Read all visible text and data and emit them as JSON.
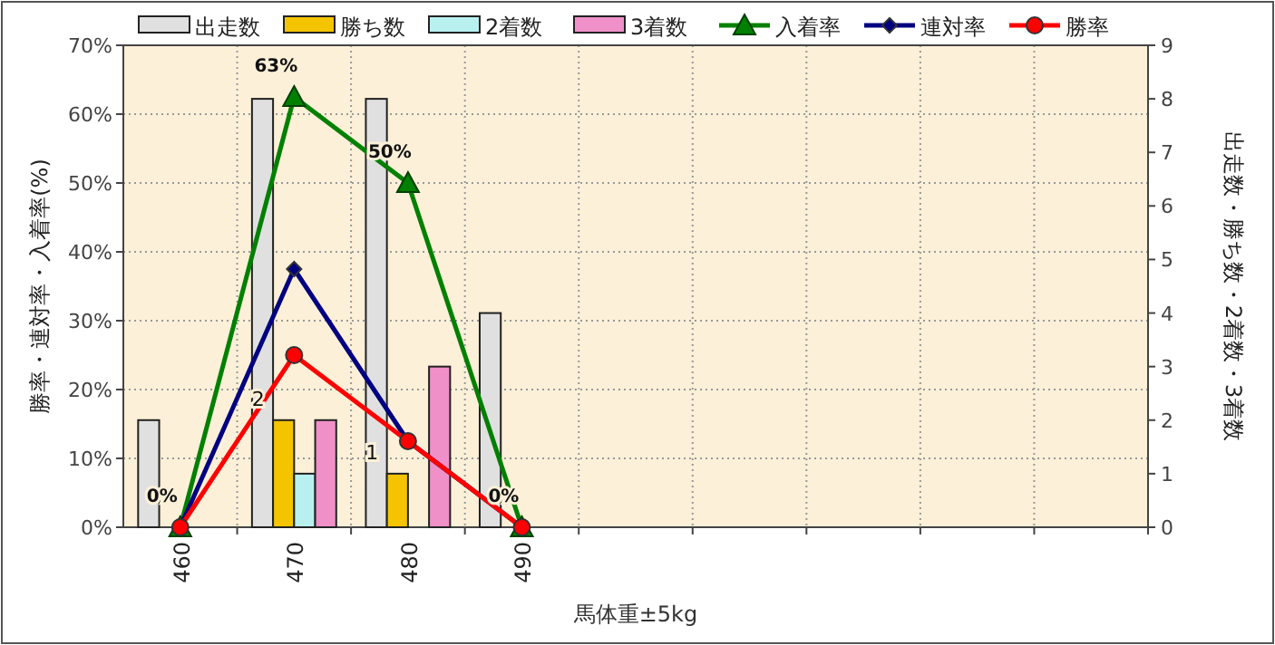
{
  "chart_data": {
    "type": "bar",
    "xlabel": "馬体重±5kg",
    "ylabel": "勝率・連対率・入着率(%)",
    "y2label": "出走数・勝ち数・2着数・3着数",
    "categories": [
      "460",
      "470",
      "480",
      "490",
      null,
      null,
      null,
      null,
      null
    ],
    "series": [
      {
        "name": "出走数",
        "axis": "y2",
        "color": "#e0e0e0",
        "values": [
          2,
          8,
          8,
          4,
          null,
          null,
          null,
          null,
          null
        ]
      },
      {
        "name": "勝ち数",
        "axis": "y2",
        "color": "#f5c400",
        "values": [
          0,
          2,
          1,
          0,
          null,
          null,
          null,
          null,
          null
        ],
        "value_labels": [
          null,
          "2",
          "1",
          null,
          null,
          null,
          null,
          null,
          null
        ]
      },
      {
        "name": "2着数",
        "axis": "y2",
        "color": "#b8f0f0",
        "values": [
          0,
          1,
          0,
          0,
          null,
          null,
          null,
          null,
          null
        ]
      },
      {
        "name": "3着数",
        "axis": "y2",
        "color": "#f090c8",
        "values": [
          0,
          2,
          3,
          0,
          null,
          null,
          null,
          null,
          null
        ]
      },
      {
        "name": "入着率",
        "type": "line",
        "color": "#008000",
        "marker": "triangle",
        "values": [
          0,
          62.5,
          50,
          0,
          null,
          null,
          null,
          null,
          null
        ],
        "value_labels": [
          "0%",
          "63%",
          "50%",
          "0%",
          null,
          null,
          null,
          null,
          null
        ]
      },
      {
        "name": "連対率",
        "type": "line",
        "color": "#000080",
        "marker": "diamond",
        "values": [
          0,
          37.5,
          12.5,
          0,
          null,
          null,
          null,
          null,
          null
        ]
      },
      {
        "name": "勝率",
        "type": "line",
        "color": "#ff0000",
        "marker": "circle",
        "values": [
          0,
          25,
          12.5,
          0,
          null,
          null,
          null,
          null,
          null
        ]
      }
    ],
    "ylim": [
      0,
      70
    ],
    "yticks": [
      {
        "value": 0,
        "label": "0%"
      },
      {
        "value": 10,
        "label": "10%"
      },
      {
        "value": 20,
        "label": "20%"
      },
      {
        "value": 30,
        "label": "30%"
      },
      {
        "value": 40,
        "label": "40%"
      },
      {
        "value": 50,
        "label": "50%"
      },
      {
        "value": 60,
        "label": "60%"
      },
      {
        "value": 70,
        "label": "70%"
      }
    ],
    "y2lim": [
      0,
      9
    ],
    "y2ticks": [
      0,
      1,
      2,
      3,
      4,
      5,
      6,
      7,
      8,
      9
    ],
    "grid": true,
    "legend": "top"
  }
}
